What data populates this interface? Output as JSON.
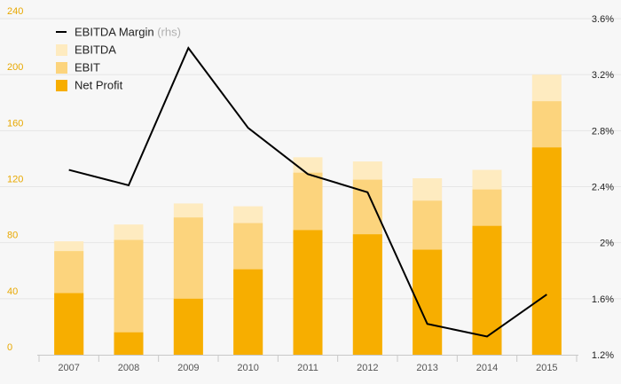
{
  "chart_data": {
    "type": "bar",
    "stacked": true,
    "categories": [
      "2007",
      "2008",
      "2009",
      "2010",
      "2011",
      "2012",
      "2013",
      "2014",
      "2015"
    ],
    "series": [
      {
        "name": "Net Profit",
        "values": [
          44,
          16,
          40,
          61,
          89,
          86,
          75,
          92,
          148
        ],
        "color": "#f7ae00"
      },
      {
        "name": "EBIT",
        "values": [
          74,
          82,
          98,
          94,
          130,
          125,
          110,
          118,
          181
        ],
        "color": "#fcd47d"
      },
      {
        "name": "EBITDA",
        "values": [
          81,
          93,
          108,
          106,
          141,
          138,
          126,
          132,
          200
        ],
        "color": "#feebc0"
      }
    ],
    "line_series": {
      "name": "EBITDA Margin",
      "name_suffix": "(rhs)",
      "axis": "right",
      "values": [
        2.52,
        2.41,
        3.39,
        2.82,
        2.49,
        2.36,
        1.42,
        1.33,
        1.63
      ],
      "color": "#000000"
    },
    "ylim": [
      0,
      240
    ],
    "yticks": [
      "0",
      "40",
      "80",
      "120",
      "160",
      "200",
      "240"
    ],
    "y2lim": [
      1.2,
      3.6
    ],
    "y2ticks": [
      "1.2%",
      "1.6%",
      "2%",
      "2.4%",
      "2.8%",
      "3.2%",
      "3.6%"
    ],
    "grid": true,
    "legend_position": "top-left",
    "legend_order": [
      "EBITDA Margin",
      "EBITDA",
      "EBIT",
      "Net Profit"
    ]
  }
}
